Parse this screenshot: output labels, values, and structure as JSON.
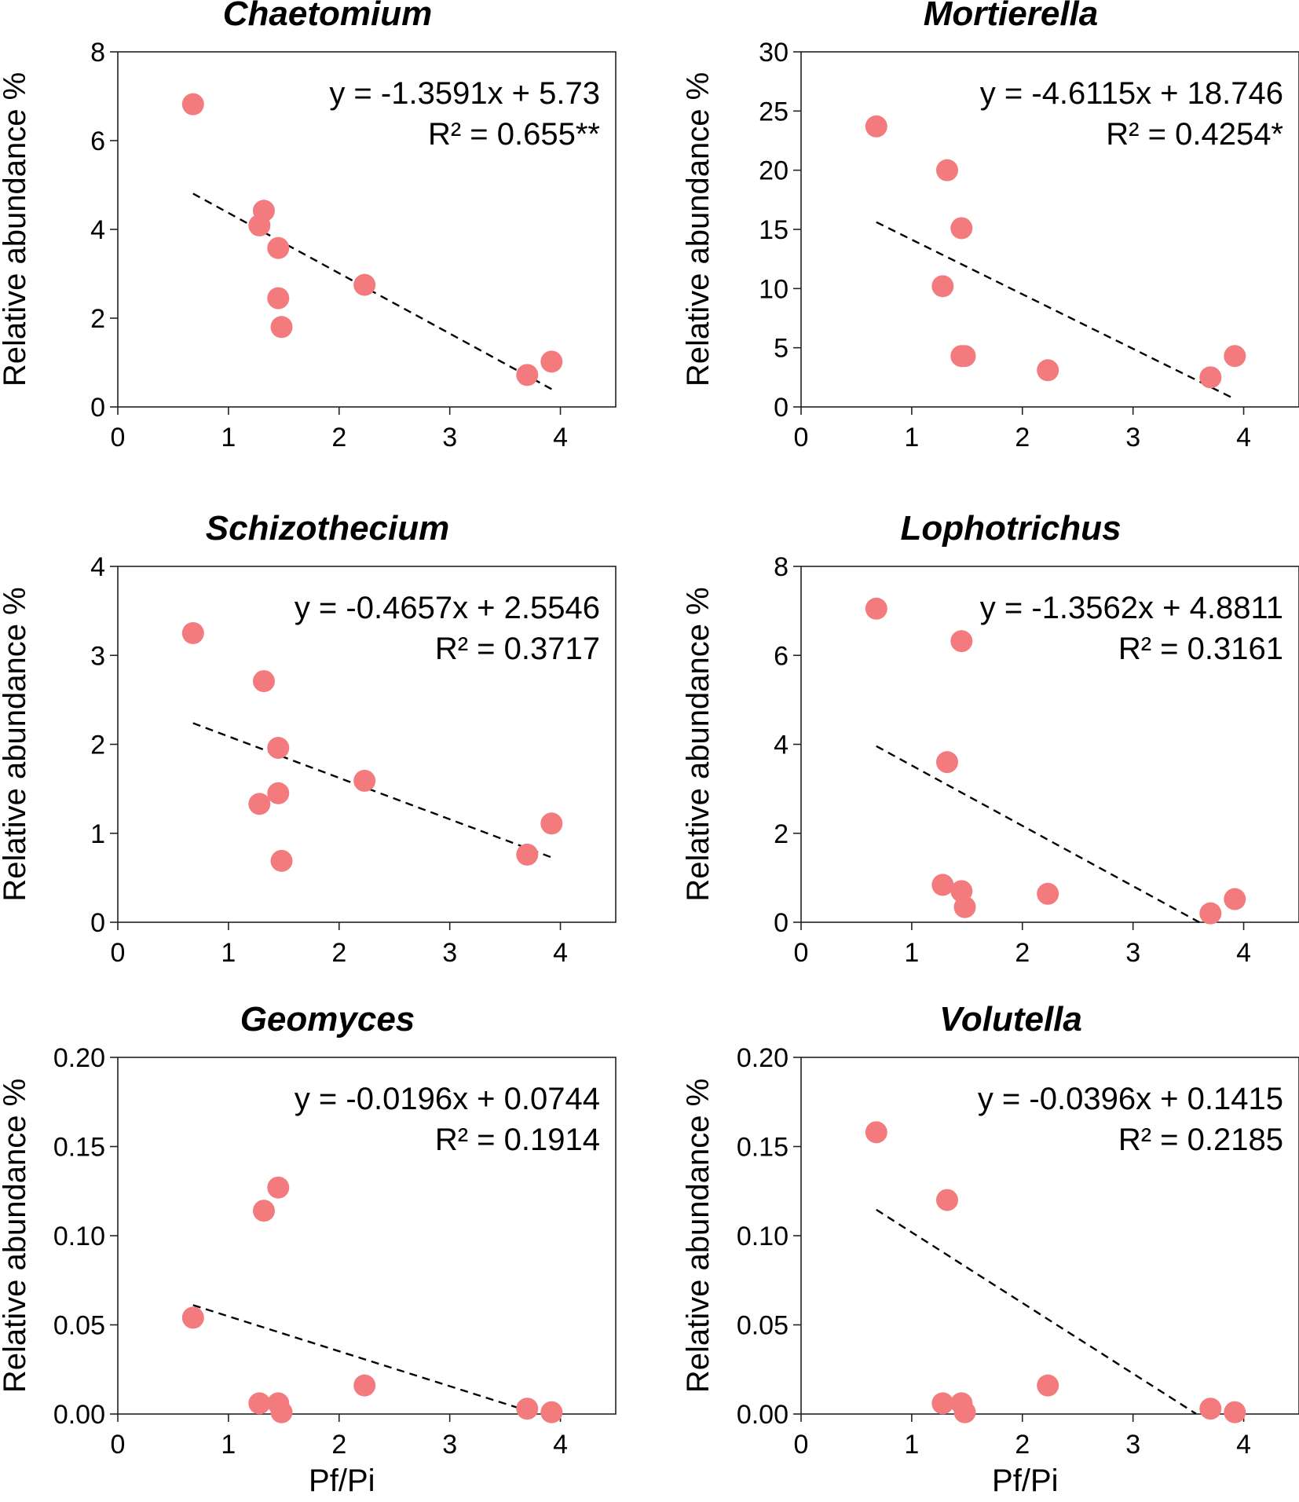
{
  "chart_data": [
    {
      "type": "scatter",
      "title": "Chaetomium",
      "xlabel": "",
      "ylabel": "Relative abundance %",
      "xlim": [
        0,
        4.5
      ],
      "ylim": [
        0,
        8
      ],
      "xticks": [
        "0",
        "1",
        "2",
        "3",
        "4"
      ],
      "yticks": [
        "0",
        "2",
        "4",
        "6",
        "8"
      ],
      "points": {
        "x": [
          0.68,
          1.32,
          1.28,
          1.45,
          1.45,
          1.48,
          2.23,
          3.7,
          3.92
        ],
        "y": [
          6.82,
          4.42,
          4.09,
          3.58,
          2.45,
          1.8,
          2.75,
          0.72,
          1.02
        ]
      },
      "trendline": {
        "slope": -1.3591,
        "intercept": 5.73,
        "x_range": [
          0.68,
          3.92
        ]
      },
      "equation": "y = -1.3591x + 5.73",
      "r2": "R² = 0.655**"
    },
    {
      "type": "scatter",
      "title": "Mortierella",
      "xlabel": "",
      "ylabel": "Relative abundance %",
      "xlim": [
        0,
        4.5
      ],
      "ylim": [
        0,
        30
      ],
      "xticks": [
        "0",
        "1",
        "2",
        "3",
        "4"
      ],
      "yticks": [
        "0",
        "5",
        "10",
        "15",
        "20",
        "25",
        "30"
      ],
      "points": {
        "x": [
          0.68,
          1.32,
          1.28,
          1.45,
          1.45,
          1.48,
          2.23,
          3.7,
          3.92
        ],
        "y": [
          23.7,
          20.0,
          10.2,
          15.1,
          4.3,
          4.3,
          3.1,
          2.5,
          4.3
        ]
      },
      "trendline": {
        "slope": -4.6115,
        "intercept": 18.746,
        "x_range": [
          0.68,
          3.92
        ]
      },
      "equation": "y = -4.6115x + 18.746",
      "r2": "R² = 0.4254*"
    },
    {
      "type": "scatter",
      "title": "Schizothecium",
      "xlabel": "",
      "ylabel": "Relative abundance %",
      "xlim": [
        0,
        4.5
      ],
      "ylim": [
        0,
        4
      ],
      "xticks": [
        "0",
        "1",
        "2",
        "3",
        "4"
      ],
      "yticks": [
        "0",
        "1",
        "2",
        "3",
        "4"
      ],
      "points": {
        "x": [
          0.68,
          1.32,
          1.28,
          1.45,
          1.45,
          1.48,
          2.23,
          3.7,
          3.92
        ],
        "y": [
          3.25,
          2.71,
          1.33,
          1.96,
          1.45,
          0.69,
          1.59,
          0.76,
          1.11
        ]
      },
      "trendline": {
        "slope": -0.4657,
        "intercept": 2.5546,
        "x_range": [
          0.68,
          3.92
        ]
      },
      "equation": "y = -0.4657x + 2.5546",
      "r2": "R² = 0.3717"
    },
    {
      "type": "scatter",
      "title": "Lophotrichus",
      "xlabel": "",
      "ylabel": "Relative abundance %",
      "xlim": [
        0,
        4.5
      ],
      "ylim": [
        0,
        8
      ],
      "xticks": [
        "0",
        "1",
        "2",
        "3",
        "4"
      ],
      "yticks": [
        "0",
        "2",
        "4",
        "6",
        "8"
      ],
      "points": {
        "x": [
          0.68,
          1.32,
          1.28,
          1.45,
          1.45,
          1.48,
          2.23,
          3.7,
          3.92
        ],
        "y": [
          7.05,
          3.6,
          0.84,
          6.32,
          0.7,
          0.34,
          0.64,
          0.2,
          0.52
        ]
      },
      "trendline": {
        "slope": -1.3562,
        "intercept": 4.8811,
        "x_range": [
          0.68,
          3.6
        ]
      },
      "equation": "y = -1.3562x + 4.8811",
      "r2": "R² = 0.3161"
    },
    {
      "type": "scatter",
      "title": "Geomyces",
      "xlabel": "Pf/Pi",
      "ylabel": "Relative abundance %",
      "xlim": [
        0,
        4.5
      ],
      "ylim": [
        0,
        0.2
      ],
      "xticks": [
        "0",
        "1",
        "2",
        "3",
        "4"
      ],
      "yticks": [
        "0.00",
        "0.05",
        "0.10",
        "0.15",
        "0.20"
      ],
      "points": {
        "x": [
          0.68,
          1.32,
          1.28,
          1.45,
          1.45,
          1.48,
          2.23,
          3.7,
          3.92
        ],
        "y": [
          0.054,
          0.114,
          0.006,
          0.127,
          0.006,
          0.001,
          0.016,
          0.003,
          0.001
        ]
      },
      "trendline": {
        "slope": -0.0196,
        "intercept": 0.0744,
        "x_range": [
          0.68,
          3.75
        ]
      },
      "equation": "y = -0.0196x + 0.0744",
      "r2": "R² = 0.1914"
    },
    {
      "type": "scatter",
      "title": "Volutella",
      "xlabel": "Pf/Pi",
      "ylabel": "Relative abundance %",
      "xlim": [
        0,
        4.5
      ],
      "ylim": [
        0,
        0.2
      ],
      "xticks": [
        "0",
        "1",
        "2",
        "3",
        "4"
      ],
      "yticks": [
        "0.00",
        "0.05",
        "0.10",
        "0.15",
        "0.20"
      ],
      "points": {
        "x": [
          0.68,
          1.32,
          1.28,
          1.45,
          1.45,
          1.48,
          2.23,
          3.7,
          3.92
        ],
        "y": [
          0.158,
          0.12,
          0.006,
          0.006,
          0.006,
          0.001,
          0.016,
          0.003,
          0.001
        ]
      },
      "trendline": {
        "slope": -0.0396,
        "intercept": 0.1415,
        "x_range": [
          0.68,
          3.57
        ]
      },
      "equation": "y = -0.0396x + 0.1415",
      "r2": "R² = 0.2185"
    }
  ],
  "colors": {
    "point": "#f37b7d",
    "trend": "#000000",
    "axis": "#222222"
  }
}
